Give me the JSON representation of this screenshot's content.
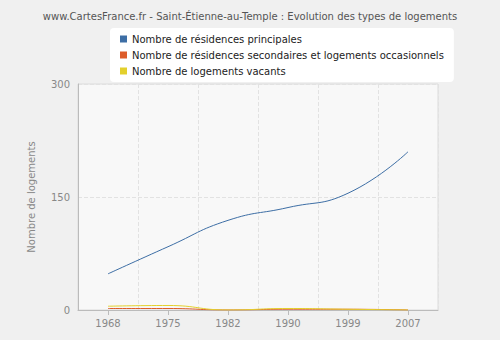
{
  "chart_data": {
    "type": "line",
    "title": "www.CartesFrance.fr - Saint-Étienne-au-Temple : Evolution des types de logements",
    "y_label": "Nombre de logements",
    "categories": [
      "1968",
      "1975",
      "1982",
      "1990",
      "1999",
      "2007"
    ],
    "series": [
      {
        "name": "Nombre de résidences principales",
        "color": "#3d6ea5",
        "values": [
          48,
          84,
          119,
          136,
          155,
          210
        ]
      },
      {
        "name": "Nombre de résidences secondaires et logements occasionnels",
        "color": "#dd5c2a",
        "values": [
          2,
          2,
          0,
          1,
          1,
          0
        ]
      },
      {
        "name": "Nombre de logements vacants",
        "color": "#e3d02c",
        "values": [
          5,
          6,
          0,
          2,
          1,
          0
        ]
      }
    ],
    "ylim": [
      0,
      300
    ],
    "yticks": [
      0,
      150,
      300
    ],
    "grid": true,
    "legend": "top",
    "line_style": "smooth"
  }
}
